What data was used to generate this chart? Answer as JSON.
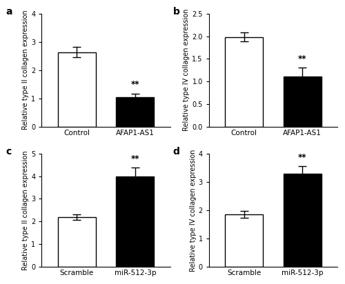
{
  "panels": [
    {
      "label": "a",
      "categories": [
        "Control",
        "AFAP1-AS1"
      ],
      "values": [
        2.63,
        1.05
      ],
      "errors": [
        0.18,
        0.12
      ],
      "colors": [
        "white",
        "black"
      ],
      "ylabel": "Relative type II collagen expression",
      "ylim": [
        0,
        4
      ],
      "yticks": [
        0,
        1,
        2,
        3,
        4
      ],
      "sig_bar": 1,
      "sig_text": "**"
    },
    {
      "label": "b",
      "categories": [
        "Control",
        "AFAP1-AS1"
      ],
      "values": [
        1.98,
        1.1
      ],
      "errors": [
        0.1,
        0.2
      ],
      "colors": [
        "white",
        "black"
      ],
      "ylabel": "Relative type IV collagen expression",
      "ylim": [
        0,
        2.5
      ],
      "yticks": [
        0.0,
        0.5,
        1.0,
        1.5,
        2.0,
        2.5
      ],
      "sig_bar": 1,
      "sig_text": "**"
    },
    {
      "label": "c",
      "categories": [
        "Scramble",
        "miR-512-3p"
      ],
      "values": [
        2.2,
        4.0
      ],
      "errors": [
        0.12,
        0.38
      ],
      "colors": [
        "white",
        "black"
      ],
      "ylabel": "Relative type II collagen expression",
      "ylim": [
        0,
        5
      ],
      "yticks": [
        0,
        1,
        2,
        3,
        4,
        5
      ],
      "sig_bar": 1,
      "sig_text": "**"
    },
    {
      "label": "d",
      "categories": [
        "Scramble",
        "miR-512-3p"
      ],
      "values": [
        1.85,
        3.3
      ],
      "errors": [
        0.12,
        0.25
      ],
      "colors": [
        "white",
        "black"
      ],
      "ylabel": "Relative type IV collagen expression",
      "ylim": [
        0,
        4
      ],
      "yticks": [
        0,
        1,
        2,
        3,
        4
      ],
      "sig_bar": 1,
      "sig_text": "**"
    }
  ],
  "background_color": "white",
  "bar_width": 0.65,
  "edge_color": "black",
  "edge_linewidth": 1.0
}
